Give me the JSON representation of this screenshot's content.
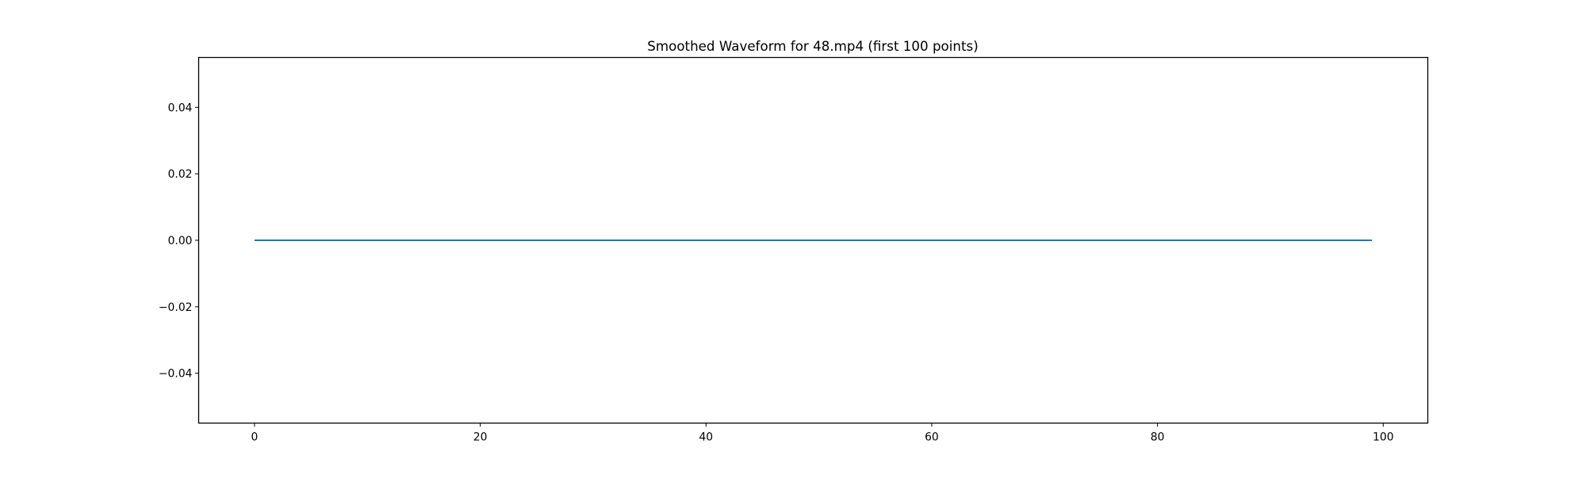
{
  "chart_data": {
    "type": "line",
    "title": "Smoothed Waveform for 48.mp4 (first 100 points)",
    "xlabel": "",
    "ylabel": "",
    "xlim": [
      -4.95,
      103.95
    ],
    "ylim": [
      -0.055,
      0.055
    ],
    "grid": false,
    "x_ticks": [
      0,
      20,
      40,
      60,
      80,
      100
    ],
    "x_tick_labels": [
      "0",
      "20",
      "40",
      "60",
      "80",
      "100"
    ],
    "y_ticks": [
      -0.04,
      -0.02,
      0.0,
      0.02,
      0.04
    ],
    "y_tick_labels": [
      "−0.04",
      "−0.02",
      "0.00",
      "0.02",
      "0.04"
    ],
    "series": [
      {
        "color": "#1f77b4",
        "x_start": 0,
        "x_end": 99,
        "values": [
          0,
          0,
          0,
          0,
          0,
          0,
          0,
          0,
          0,
          0,
          0,
          0,
          0,
          0,
          0,
          0,
          0,
          0,
          0,
          0,
          0,
          0,
          0,
          0,
          0,
          0,
          0,
          0,
          0,
          0,
          0,
          0,
          0,
          0,
          0,
          0,
          0,
          0,
          0,
          0,
          0,
          0,
          0,
          0,
          0,
          0,
          0,
          0,
          0,
          0,
          0,
          0,
          0,
          0,
          0,
          0,
          0,
          0,
          0,
          0,
          0,
          0,
          0,
          0,
          0,
          0,
          0,
          0,
          0,
          0,
          0,
          0,
          0,
          0,
          0,
          0,
          0,
          0,
          0,
          0,
          0,
          0,
          0,
          0,
          0,
          0,
          0,
          0,
          0,
          0,
          0,
          0,
          0,
          0,
          0,
          0,
          0,
          0,
          0,
          0
        ]
      }
    ]
  }
}
